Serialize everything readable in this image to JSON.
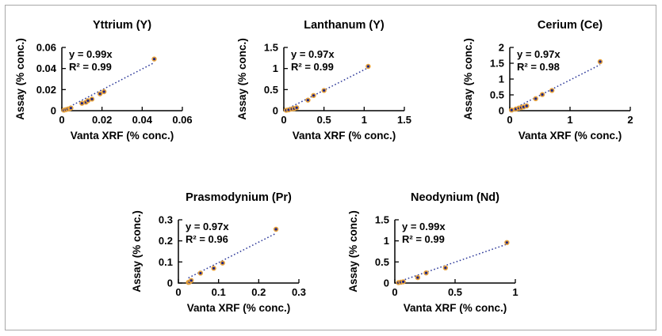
{
  "figure": {
    "background": "#ffffff",
    "border_color": "#a8a8a8"
  },
  "styles": {
    "marker_fill": "#1f2583",
    "marker_ring": "#e8a33d",
    "trendline_color": "#2b3798",
    "axis_color": "#000000",
    "text_color": "#000000"
  },
  "chart_data": [
    {
      "type": "scatter",
      "title": "Yttrium (Y)",
      "equation": "y = 0.99x",
      "r_squared": "R² = 0.99",
      "slope": 0.99,
      "xlabel": "Vanta XRF (% conc.)",
      "ylabel": "Assay (% conc.)",
      "xlim": [
        0,
        0.06
      ],
      "ylim": [
        0,
        0.06
      ],
      "xticks": [
        0,
        0.02,
        0.04,
        0.06
      ],
      "yticks": [
        0,
        0.02,
        0.04,
        0.06
      ],
      "grid": false,
      "points": [
        [
          0.001,
          0.0005
        ],
        [
          0.002,
          0.001
        ],
        [
          0.003,
          0.0015
        ],
        [
          0.004,
          0.002
        ],
        [
          0.0045,
          0.0025
        ],
        [
          0.01,
          0.007
        ],
        [
          0.012,
          0.008
        ],
        [
          0.013,
          0.0095
        ],
        [
          0.015,
          0.011
        ],
        [
          0.019,
          0.016
        ],
        [
          0.021,
          0.018
        ],
        [
          0.046,
          0.049
        ]
      ]
    },
    {
      "type": "scatter",
      "title": "Lanthanum (Y)",
      "equation": "y = 0.97x",
      "r_squared": "R² = 0.99",
      "slope": 0.97,
      "xlabel": "Vanta XRF (% conc.)",
      "ylabel": "Assay (% conc.)",
      "xlim": [
        0,
        1.5
      ],
      "ylim": [
        0,
        1.5
      ],
      "xticks": [
        0,
        0.5,
        1,
        1.5
      ],
      "yticks": [
        0,
        0.5,
        1,
        1.5
      ],
      "grid": false,
      "points": [
        [
          0.03,
          0.01
        ],
        [
          0.06,
          0.02
        ],
        [
          0.1,
          0.04
        ],
        [
          0.13,
          0.05
        ],
        [
          0.16,
          0.07
        ],
        [
          0.3,
          0.25
        ],
        [
          0.37,
          0.36
        ],
        [
          0.5,
          0.48
        ],
        [
          1.05,
          1.05
        ]
      ]
    },
    {
      "type": "scatter",
      "title": "Cerium (Ce)",
      "equation": "y = 0.97x",
      "r_squared": "R² = 0.98",
      "slope": 0.97,
      "xlabel": "Vanta XRF (% conc.)",
      "ylabel": "Assay (% conc.)",
      "xlim": [
        0,
        2
      ],
      "ylim": [
        0,
        2
      ],
      "xticks": [
        0,
        1,
        2
      ],
      "yticks": [
        0,
        0.5,
        1,
        1.5,
        2
      ],
      "grid": false,
      "points": [
        [
          0.03,
          0.02
        ],
        [
          0.1,
          0.05
        ],
        [
          0.15,
          0.08
        ],
        [
          0.19,
          0.1
        ],
        [
          0.23,
          0.12
        ],
        [
          0.28,
          0.15
        ],
        [
          0.43,
          0.38
        ],
        [
          0.54,
          0.51
        ],
        [
          0.7,
          0.64
        ],
        [
          1.5,
          1.55
        ]
      ]
    },
    {
      "type": "scatter",
      "title": "Prasmodynium (Pr)",
      "equation": "y = 0.97x",
      "r_squared": "R² = 0.96",
      "slope": 0.97,
      "xlabel": "Vanta XRF (% conc.)",
      "ylabel": "Assay (% conc.)",
      "xlim": [
        0,
        0.3
      ],
      "ylim": [
        0,
        0.3
      ],
      "xticks": [
        0,
        0.1,
        0.2,
        0.3
      ],
      "yticks": [
        0,
        0.1,
        0.2,
        0.3
      ],
      "grid": false,
      "points": [
        [
          0.025,
          0.003
        ],
        [
          0.028,
          0.005
        ],
        [
          0.032,
          0.012
        ],
        [
          0.055,
          0.047
        ],
        [
          0.088,
          0.07
        ],
        [
          0.11,
          0.095
        ],
        [
          0.243,
          0.255
        ]
      ]
    },
    {
      "type": "scatter",
      "title": "Neodynium (Nd)",
      "equation": "y = 0.99x",
      "r_squared": "R² = 0.99",
      "slope": 0.99,
      "xlabel": "Vanta XRF (% conc.)",
      "ylabel": "Assay (% conc.)",
      "xlim": [
        0,
        1
      ],
      "ylim": [
        0,
        1.5
      ],
      "xticks": [
        0,
        0.5,
        1
      ],
      "yticks": [
        0,
        0.5,
        1,
        1.5
      ],
      "grid": false,
      "points": [
        [
          0.03,
          0.01
        ],
        [
          0.05,
          0.02
        ],
        [
          0.07,
          0.03
        ],
        [
          0.19,
          0.13
        ],
        [
          0.26,
          0.24
        ],
        [
          0.42,
          0.36
        ],
        [
          0.93,
          0.96
        ]
      ]
    }
  ]
}
